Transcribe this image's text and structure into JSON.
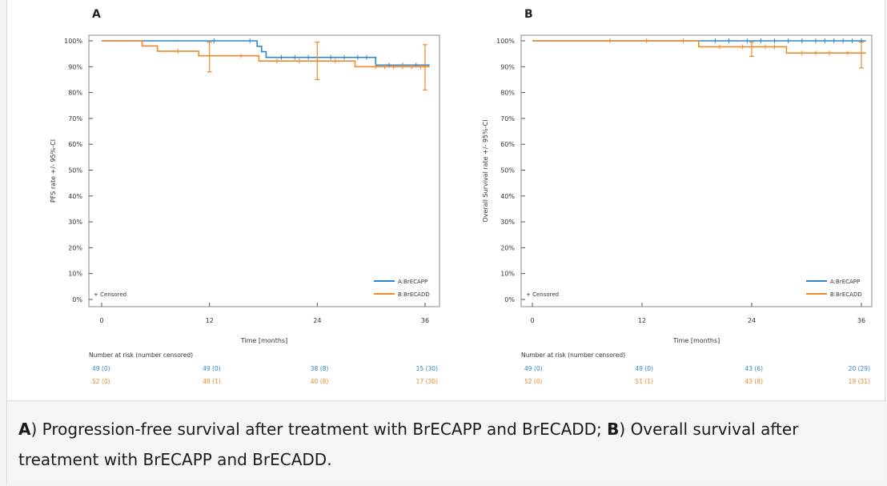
{
  "colors": {
    "series_a": "#2f86c8",
    "series_b": "#ee8a2a",
    "axis": "#555555",
    "text": "#333333"
  },
  "caption": {
    "a_letter": "A",
    "a_text": ") Progression-free survival after treatment with BrECAPP and BrECADD; ",
    "b_letter": "B",
    "b_text": ") Overall survival after treatment with BrECAPP and BrECADD."
  },
  "chart_data": [
    {
      "type": "line",
      "panel_label": "A",
      "xlabel": "Time [months]",
      "ylabel": "PFS rate +/- 95%-CI",
      "xlim": [
        0,
        36
      ],
      "ylim": [
        0,
        100
      ],
      "xticks": [
        "0",
        "12",
        "24",
        "36"
      ],
      "yticks": [
        "0%",
        "10%",
        "20%",
        "30%",
        "40%",
        "50%",
        "60%",
        "70%",
        "80%",
        "90%",
        "100%"
      ],
      "censored_note": "+ Censored",
      "legend_position": "bottom-right",
      "series": [
        {
          "name": "A:BrECAPP",
          "color": "#2f86c8",
          "steps": [
            [
              0,
              100
            ],
            [
              17.3,
              97.9
            ],
            [
              17.8,
              95.8
            ],
            [
              18.3,
              93.6
            ],
            [
              30.5,
              90.6
            ],
            [
              36.5,
              90.6
            ]
          ],
          "censored": [
            12.5,
            16.5,
            20,
            21.5,
            23,
            25.5,
            27,
            28.5,
            29.5,
            32,
            33.5,
            35
          ]
        },
        {
          "name": "B:BrECADD",
          "color": "#ee8a2a",
          "steps": [
            [
              0,
              100
            ],
            [
              4.5,
              98
            ],
            [
              6.2,
              96
            ],
            [
              10.8,
              94.2
            ],
            [
              17.5,
              92.2
            ],
            [
              28.2,
              90
            ],
            [
              36.5,
              90
            ]
          ],
          "censored": [
            8.5,
            15.5,
            19.5,
            22,
            26,
            30.5,
            31.5,
            32.5,
            33.5,
            34.5,
            35.5
          ],
          "ci": [
            [
              12,
              88,
              99.5
            ],
            [
              24,
              85,
              99.5
            ],
            [
              36,
              81,
              98.5
            ]
          ]
        }
      ],
      "risk_table": {
        "title": "Number at risk (number censored)",
        "times": [
          0,
          12,
          24,
          36
        ],
        "rows": [
          {
            "color": "#2f86c8",
            "values": [
              "49 (0)",
              "49 (0)",
              "38 (8)",
              "15 (30)"
            ]
          },
          {
            "color": "#ee8a2a",
            "values": [
              "52 (0)",
              "48 (1)",
              "40 (8)",
              "17 (30)"
            ]
          }
        ]
      }
    },
    {
      "type": "line",
      "panel_label": "B",
      "xlabel": "Time [months]",
      "ylabel": "Overall Survival rate +/- 95%-CI",
      "xlim": [
        0,
        36
      ],
      "ylim": [
        0,
        100
      ],
      "xticks": [
        "0",
        "12",
        "24",
        "36"
      ],
      "yticks": [
        "0%",
        "10%",
        "20%",
        "30%",
        "40%",
        "50%",
        "60%",
        "70%",
        "80%",
        "90%",
        "100%"
      ],
      "censored_note": "+ Censored",
      "legend_position": "bottom-right",
      "series": [
        {
          "name": "A:BrECAPP",
          "color": "#2f86c8",
          "steps": [
            [
              0,
              100
            ],
            [
              36.5,
              100
            ]
          ],
          "censored": [
            20,
            21.5,
            23.5,
            25,
            26.5,
            28,
            29.5,
            31,
            32,
            33,
            34,
            35,
            36
          ]
        },
        {
          "name": "B:BrECADD",
          "color": "#ee8a2a",
          "steps": [
            [
              0,
              100
            ],
            [
              18.2,
              97.7
            ],
            [
              27.8,
              95.3
            ],
            [
              36.5,
              95.3
            ]
          ],
          "censored": [
            8.5,
            12.5,
            16.5,
            20.5,
            23,
            25.5,
            26.5,
            29.5,
            31,
            32.5,
            34.5
          ],
          "ci": [
            [
              24,
              94,
              99.5
            ],
            [
              36,
              89.5,
              99.5
            ]
          ]
        }
      ],
      "risk_table": {
        "title": "Number at risk (number censored)",
        "times": [
          0,
          12,
          24,
          36
        ],
        "rows": [
          {
            "color": "#2f86c8",
            "values": [
              "49 (0)",
              "49 (0)",
              "43 (6)",
              "20 (29)"
            ]
          },
          {
            "color": "#ee8a2a",
            "values": [
              "52 (0)",
              "51 (1)",
              "43 (8)",
              "19 (31)"
            ]
          }
        ]
      }
    }
  ]
}
